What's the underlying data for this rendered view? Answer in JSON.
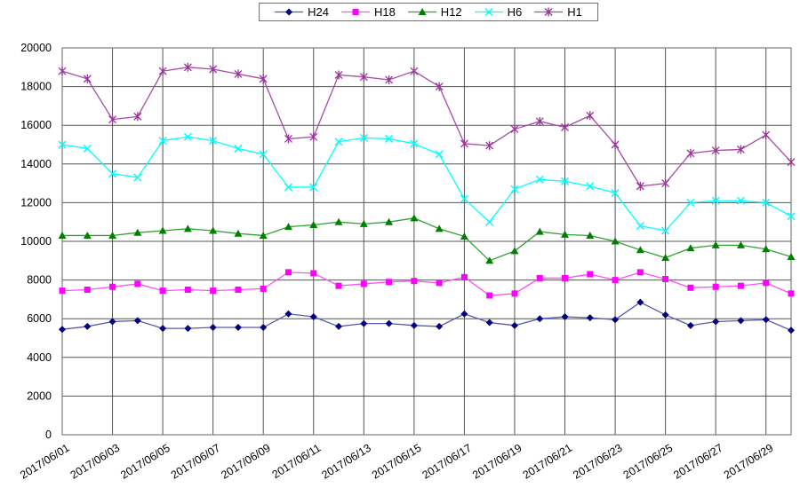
{
  "chart_data": {
    "type": "line",
    "title": "",
    "x_axis": {
      "tick_labels": [
        "2017/06/01",
        "2017/06/03",
        "2017/06/05",
        "2017/06/07",
        "2017/06/09",
        "2017/06/11",
        "2017/06/13",
        "2017/06/15",
        "2017/06/17",
        "2017/06/19",
        "2017/06/21",
        "2017/06/23",
        "2017/06/25",
        "2017/06/27",
        "2017/06/29"
      ],
      "points_per_label": 2,
      "n_points": 30,
      "label_rotation_deg": -32
    },
    "y_axis": {
      "min": 0,
      "max": 20000,
      "tick_step": 2000,
      "tick_labels": [
        "0",
        "2000",
        "4000",
        "6000",
        "8000",
        "10000",
        "12000",
        "14000",
        "16000",
        "18000",
        "20000"
      ]
    },
    "grid": {
      "horizontal": true,
      "vertical": true,
      "color": "#555555",
      "border_color": "#808080"
    },
    "legend": {
      "position": "top-center",
      "items": [
        "H24",
        "H18",
        "H12",
        "H6",
        "H1"
      ]
    },
    "series": [
      {
        "name": "H24",
        "marker": "diamond",
        "marker_color": "#000080",
        "line_color": "#5a5aad",
        "values": [
          5450,
          5600,
          5850,
          5900,
          5500,
          5500,
          5550,
          5550,
          5550,
          6250,
          6100,
          5600,
          5750,
          5750,
          5650,
          5600,
          6250,
          5800,
          5650,
          6000,
          6100,
          6050,
          5950,
          6850,
          6200,
          5650,
          5850,
          5900,
          5950,
          5400
        ]
      },
      {
        "name": "H18",
        "marker": "square",
        "marker_color": "#ff00ff",
        "line_color": "#ff4dff",
        "values": [
          7450,
          7500,
          7650,
          7800,
          7450,
          7500,
          7450,
          7500,
          7550,
          8400,
          8350,
          7700,
          7800,
          7900,
          7950,
          7850,
          8150,
          7200,
          7300,
          8100,
          8100,
          8300,
          8000,
          8400,
          8050,
          7600,
          7650,
          7700,
          7850,
          7300
        ]
      },
      {
        "name": "H12",
        "marker": "triangle",
        "marker_color": "#008000",
        "line_color": "#33a033",
        "values": [
          10300,
          10300,
          10300,
          10450,
          10550,
          10650,
          10550,
          10400,
          10300,
          10750,
          10850,
          11000,
          10900,
          11000,
          11200,
          10650,
          10250,
          9000,
          9500,
          10500,
          10350,
          10300,
          10000,
          9550,
          9150,
          9650,
          9800,
          9800,
          9600,
          9200
        ]
      },
      {
        "name": "H6",
        "marker": "x",
        "marker_color": "#00ffff",
        "line_color": "#00ffff",
        "values": [
          15000,
          14800,
          13500,
          13300,
          15200,
          15400,
          15200,
          14800,
          14500,
          12800,
          12800,
          15150,
          15350,
          15300,
          15050,
          14500,
          12200,
          11000,
          12700,
          13200,
          13100,
          12850,
          12500,
          10800,
          10550,
          12000,
          12100,
          12100,
          12000,
          11300
        ]
      },
      {
        "name": "H1",
        "marker": "star",
        "marker_color": "#993399",
        "line_color": "#a84aa8",
        "values": [
          18800,
          18400,
          16300,
          16450,
          18800,
          19000,
          18900,
          18650,
          18400,
          15300,
          15400,
          18600,
          18500,
          18350,
          18800,
          18000,
          15050,
          14950,
          15800,
          16200,
          15900,
          16500,
          15000,
          12850,
          13000,
          14550,
          14700,
          14750,
          15500,
          14100
        ]
      }
    ]
  }
}
